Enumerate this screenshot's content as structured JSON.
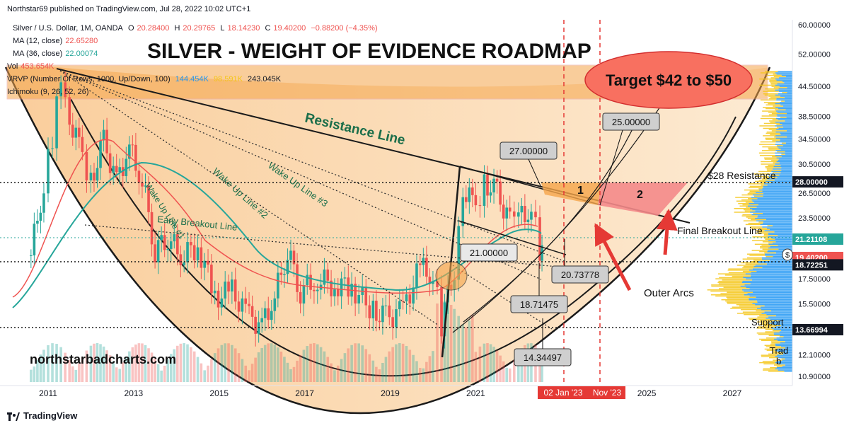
{
  "header": {
    "publish_line": "Northstar69 published on TradingView.com, Jul 28, 2022 10:02 UTC+1"
  },
  "legend": {
    "symbol": "Silver / U.S. Dollar, 1M, OANDA",
    "o_label": "O",
    "o": "20.28400",
    "h_label": "H",
    "h": "20.29765",
    "l_label": "L",
    "l": "18.14230",
    "c_label": "C",
    "c": "19.40200",
    "change": "−0.88200 (−4.35%)",
    "ma12_label": "MA (12, close)",
    "ma12": "22.65280",
    "ma36_label": "MA (36, close)",
    "ma36": "22.00074",
    "vol_label": "Vol",
    "vol": "453.654K",
    "vrvp_label": "VRVP (Number Of Rows, 1000, Up/Down, 100)",
    "vrvp_up": "144.454K",
    "vrvp_down": "98.591K",
    "vrvp_total": "243.045K",
    "ichimoku_label": "Ichimoku (9, 26, 52, 26)"
  },
  "footer": {
    "brand": "TradingView"
  },
  "colors": {
    "green": "#26a69a",
    "red": "#ef5350",
    "orange_fill": "#f7b569",
    "ma12": "#ef5350",
    "ma36": "#26a69a",
    "vrvp_up": "#2196f3",
    "vrvp_down": "#f5c518",
    "annotation_red": "#e53935",
    "pink_fill": "#f48a8a"
  },
  "chart_data": {
    "type": "candlestick",
    "title": "SILVER - WEIGHT OF EVIDENCE ROADMAP",
    "watermark": "northstarbadcharts.com",
    "symbol": "Silver / U.S. Dollar",
    "timeframe": "1M",
    "x_ticks": [
      "2011",
      "2013",
      "2015",
      "2017",
      "2019",
      "2021",
      "2025",
      "2027"
    ],
    "x_highlight_labels": [
      "02 Jan '23",
      "Nov '23"
    ],
    "y_scale": "log",
    "y_ticks": [
      "60.00000",
      "52.00000",
      "44.50000",
      "38.50000",
      "34.50000",
      "30.50000",
      "26.50000",
      "23.50000",
      "17.50000",
      "15.50000",
      "12.10000",
      "10.90000"
    ],
    "y_price_labels": [
      {
        "text": "28.00000",
        "style": "dark"
      },
      {
        "text": "21.21108",
        "style": "green"
      },
      {
        "text": "19.40200",
        "style": "red"
      },
      {
        "text": "18.72251",
        "style": "dark"
      },
      {
        "text": "13.66994",
        "style": "dark"
      }
    ],
    "horizontal_levels": [
      28.0,
      21.21108,
      18.72251,
      13.66994
    ],
    "line_labels": [
      "Resistance Line",
      "Wake Up Line #3",
      "Wake Up Line #2",
      "Wake Up Line #1",
      "Early Breakout Line",
      "Final Breakout Line"
    ],
    "text_annotations": [
      "$28 Resistance",
      "Support",
      "Outer Arcs",
      "1",
      "2",
      "Target $42 to $50"
    ],
    "price_boxes": [
      "27.00000",
      "25.00000",
      "21.00000",
      "20.73778",
      "18.71475",
      "14.34497"
    ],
    "cut_off_text": [
      "Trad",
      "b",
      "$"
    ],
    "monthly_closes": [
      {
        "year": 2010.6,
        "close": 19.6
      },
      {
        "year": 2010.9,
        "close": 27.5
      },
      {
        "year": 2011.1,
        "close": 35.0
      },
      {
        "year": 2011.3,
        "close": 48.0
      },
      {
        "year": 2011.5,
        "close": 38.0
      },
      {
        "year": 2011.8,
        "close": 32.0
      },
      {
        "year": 2012.0,
        "close": 28.0
      },
      {
        "year": 2012.3,
        "close": 34.0
      },
      {
        "year": 2012.6,
        "close": 28.0
      },
      {
        "year": 2012.9,
        "close": 33.0
      },
      {
        "year": 2013.2,
        "close": 28.0
      },
      {
        "year": 2013.5,
        "close": 20.0
      },
      {
        "year": 2013.8,
        "close": 21.5
      },
      {
        "year": 2014.1,
        "close": 19.5
      },
      {
        "year": 2014.5,
        "close": 20.5
      },
      {
        "year": 2014.9,
        "close": 16.0
      },
      {
        "year": 2015.3,
        "close": 16.5
      },
      {
        "year": 2015.7,
        "close": 14.5
      },
      {
        "year": 2016.0,
        "close": 14.0
      },
      {
        "year": 2016.3,
        "close": 16.0
      },
      {
        "year": 2016.6,
        "close": 20.0
      },
      {
        "year": 2016.9,
        "close": 16.5
      },
      {
        "year": 2017.3,
        "close": 17.5
      },
      {
        "year": 2017.7,
        "close": 17.0
      },
      {
        "year": 2018.1,
        "close": 16.8
      },
      {
        "year": 2018.6,
        "close": 15.0
      },
      {
        "year": 2018.9,
        "close": 14.5
      },
      {
        "year": 2019.3,
        "close": 15.0
      },
      {
        "year": 2019.7,
        "close": 18.5
      },
      {
        "year": 2020.0,
        "close": 17.8
      },
      {
        "year": 2020.2,
        "close": 14.0
      },
      {
        "year": 2020.5,
        "close": 18.5
      },
      {
        "year": 2020.7,
        "close": 27.0
      },
      {
        "year": 2021.0,
        "close": 25.0
      },
      {
        "year": 2021.2,
        "close": 28.0
      },
      {
        "year": 2021.5,
        "close": 26.5
      },
      {
        "year": 2021.8,
        "close": 23.0
      },
      {
        "year": 2022.0,
        "close": 23.5
      },
      {
        "year": 2022.3,
        "close": 24.5
      },
      {
        "year": 2022.5,
        "close": 20.0
      },
      {
        "year": 2022.6,
        "close": 19.4
      }
    ]
  }
}
